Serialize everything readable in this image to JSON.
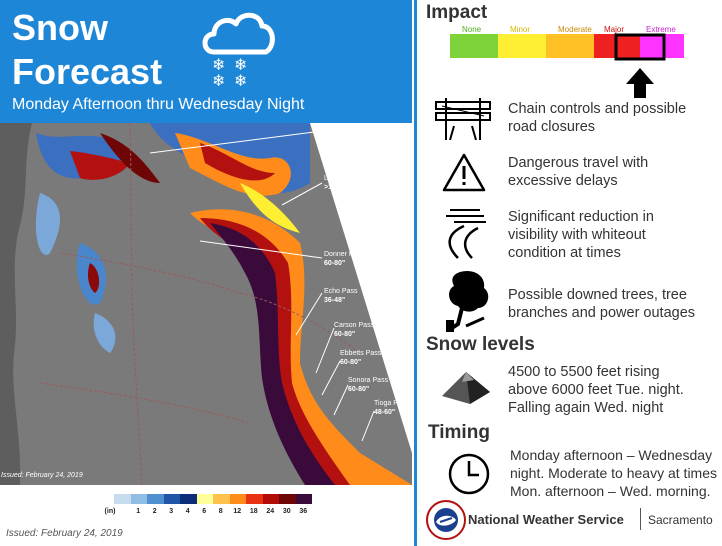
{
  "header": {
    "title_line1": "Snow",
    "title_line2": "Forecast",
    "subtitle": "Monday Afternoon thru Wednesday Night"
  },
  "map": {
    "issued_small": "Issued: February 24, 2019",
    "labels": [
      {
        "name": "Interstate 5"
      },
      {
        "name": "Lassen Park",
        "amount": ">100\""
      },
      {
        "name": "Donner Pass",
        "amount": "60-80\""
      },
      {
        "name": "Echo Pass",
        "amount": "36-48\""
      },
      {
        "name": "Carson Pass",
        "amount": "60-80\""
      },
      {
        "name": "Ebbetts Pass",
        "amount": "60-80\""
      },
      {
        "name": "Sonora Pass",
        "amount": "60-80\""
      },
      {
        "name": "Tioga Pass",
        "amount": "48-60\""
      }
    ]
  },
  "legend": {
    "unit": "(in)",
    "ticks": [
      "1",
      "2",
      "3",
      "4",
      "6",
      "8",
      "12",
      "18",
      "24",
      "30",
      "36"
    ],
    "colors": [
      "#c8dcef",
      "#8fbde3",
      "#4f90cf",
      "#1f56a8",
      "#0b2d7a",
      "#ffff99",
      "#ffc34d",
      "#ff8c1a",
      "#e83212",
      "#b30c08",
      "#6e0606",
      "#3a0a3a"
    ]
  },
  "issued": "Issued: February 24, 2019",
  "impact": {
    "heading": "Impact",
    "levels": [
      {
        "label": "None",
        "color": "#7ed33a",
        "label_color": "#4caf1d"
      },
      {
        "label": "Minor",
        "color": "#ffef33",
        "label_color": "#d9b800"
      },
      {
        "label": "Moderate",
        "color": "#ffc125",
        "label_color": "#c98a00"
      },
      {
        "label": "Major",
        "color": "#ee2020",
        "label_color": "#d01010"
      },
      {
        "label": "Extreme",
        "color": "#ff33ff",
        "label_color": "#cc22cc"
      }
    ],
    "selected": "Extreme",
    "items": [
      {
        "icon": "chain-control-icon",
        "text_line1": "Chain controls and possible",
        "text_line2": "road closures"
      },
      {
        "icon": "warning-triangle-icon",
        "text_line1": "Dangerous travel with",
        "text_line2": "excessive delays"
      },
      {
        "icon": "whiteout-road-icon",
        "text_line1": "Significant reduction in",
        "text_line2": "visibility with whiteout",
        "text_line3": "condition at times"
      },
      {
        "icon": "downed-tree-icon",
        "text_line1": "Possible downed trees, tree",
        "text_line2": "branches and power outages"
      }
    ]
  },
  "snow_levels": {
    "heading": "Snow levels",
    "text_line1": "4500 to 5500 feet rising",
    "text_line2": "above 6000 feet Tue. night.",
    "text_line3": "Falling again Wed. night"
  },
  "timing": {
    "heading": "Timing",
    "text_line1": "Monday afternoon – Wednesday",
    "text_line2": "night. Moderate to heavy at times",
    "text_line3": "Mon. afternoon – Wed. morning."
  },
  "footer": {
    "agency": "National Weather Service",
    "office": "Sacramento",
    "logo_text": "NATIONAL WEATHER SERVICE"
  }
}
